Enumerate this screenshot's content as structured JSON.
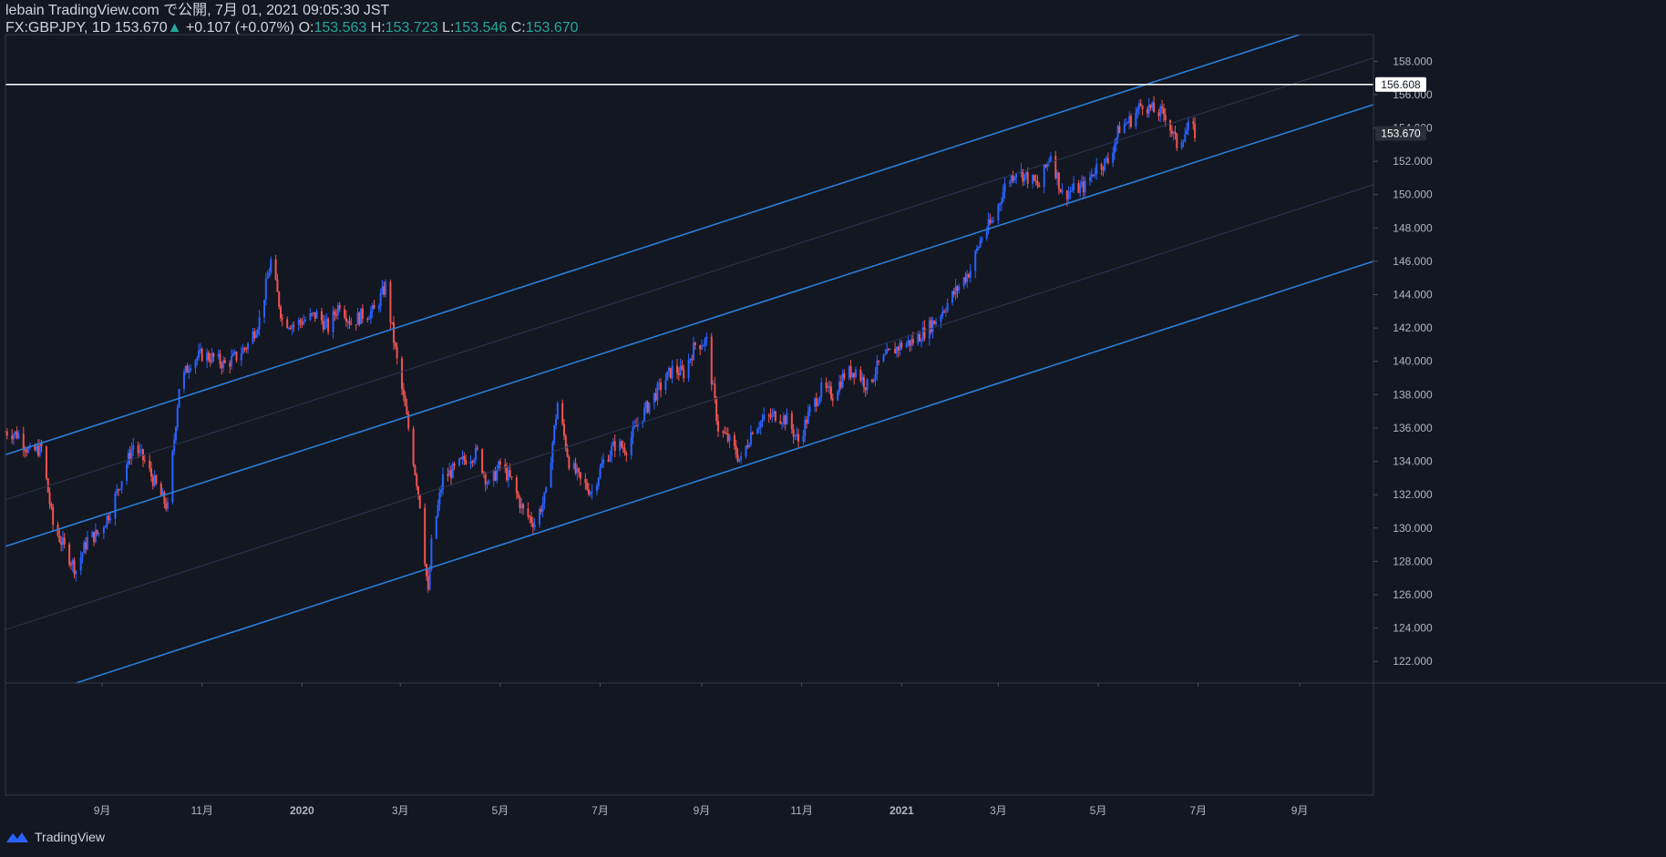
{
  "header": {
    "line1": "lebain TradingView.com で公開, 7月 01, 2021 09:05:30 JST",
    "symbol": "FX:GBPJPY, 1D",
    "last": "153.670",
    "change": "+0.107 (+0.07%)",
    "o_label": "O:",
    "o_value": "153.563",
    "h_label": "H:",
    "h_value": "153.723",
    "l_label": "L:",
    "l_value": "153.546",
    "c_label": "C:",
    "c_value": "153.670"
  },
  "footer": {
    "brand": "TradingView"
  },
  "colors": {
    "up": "#2962ff",
    "down": "#ef5350",
    "channel": "#2a7fd9",
    "background": "#131722",
    "text": "#d1d4dc",
    "accent": "#26a69a"
  },
  "chart_data": {
    "type": "candlestick",
    "symbol": "FX:GBPJPY",
    "interval": "1D",
    "x_ticks": [
      "9月",
      "11月",
      "2020",
      "3月",
      "5月",
      "7月",
      "9月",
      "11月",
      "2021",
      "3月",
      "5月",
      "7月",
      "9月"
    ],
    "x_tick_dates": [
      "2019-09-01",
      "2019-11-01",
      "2020-01-01",
      "2020-03-01",
      "2020-05-01",
      "2020-07-01",
      "2020-09-01",
      "2020-11-01",
      "2021-01-01",
      "2021-03-01",
      "2021-05-01",
      "2021-07-01",
      "2021-09-01"
    ],
    "y_ticks": [
      "122.000",
      "124.000",
      "126.000",
      "128.000",
      "130.000",
      "132.000",
      "134.000",
      "136.000",
      "138.000",
      "140.000",
      "142.000",
      "144.000",
      "146.000",
      "148.000",
      "150.000",
      "152.000",
      "154.000",
      "156.000",
      "158.000"
    ],
    "ylim": [
      120.7,
      159.6
    ],
    "xlim": [
      "2019-07-04",
      "2021-10-16"
    ],
    "horizontal_line": {
      "value": 156.608,
      "label": "156.608"
    },
    "last_price_label": "153.670",
    "channel_lines": [
      {
        "kind": "main",
        "from": {
          "date": "2019-07-04",
          "value": 134.4
        },
        "to": {
          "date": "2021-09-01",
          "value": 159.6
        }
      },
      {
        "kind": "main",
        "from": {
          "date": "2019-07-04",
          "value": 128.9
        },
        "to": {
          "date": "2021-10-16",
          "value": 155.4
        }
      },
      {
        "kind": "main",
        "from": {
          "date": "2019-08-16",
          "value": 120.7
        },
        "to": {
          "date": "2021-10-16",
          "value": 146.0
        }
      },
      {
        "kind": "mid",
        "from": {
          "date": "2019-07-04",
          "value": 131.7
        },
        "to": {
          "date": "2021-10-16",
          "value": 158.2
        }
      },
      {
        "kind": "mid",
        "from": {
          "date": "2019-07-04",
          "value": 123.9
        },
        "to": {
          "date": "2021-10-16",
          "value": 150.6
        }
      }
    ],
    "close_series": [
      {
        "date": "2019-07-04",
        "close": 135.8
      },
      {
        "date": "2019-07-12",
        "close": 135.6
      },
      {
        "date": "2019-07-19",
        "close": 134.5
      },
      {
        "date": "2019-07-26",
        "close": 134.8
      },
      {
        "date": "2019-08-02",
        "close": 130.2
      },
      {
        "date": "2019-08-09",
        "close": 128.8
      },
      {
        "date": "2019-08-16",
        "close": 127.5
      },
      {
        "date": "2019-08-23",
        "close": 129.3
      },
      {
        "date": "2019-08-30",
        "close": 129.7
      },
      {
        "date": "2019-09-06",
        "close": 131.0
      },
      {
        "date": "2019-09-13",
        "close": 133.0
      },
      {
        "date": "2019-09-20",
        "close": 135.0
      },
      {
        "date": "2019-09-27",
        "close": 134.0
      },
      {
        "date": "2019-10-04",
        "close": 132.5
      },
      {
        "date": "2019-10-11",
        "close": 131.2
      },
      {
        "date": "2019-10-18",
        "close": 138.5
      },
      {
        "date": "2019-10-25",
        "close": 140.0
      },
      {
        "date": "2019-11-01",
        "close": 140.4
      },
      {
        "date": "2019-11-08",
        "close": 140.2
      },
      {
        "date": "2019-11-15",
        "close": 139.8
      },
      {
        "date": "2019-11-22",
        "close": 140.3
      },
      {
        "date": "2019-11-29",
        "close": 141.0
      },
      {
        "date": "2019-12-06",
        "close": 142.5
      },
      {
        "date": "2019-12-13",
        "close": 146.0
      },
      {
        "date": "2019-12-20",
        "close": 142.5
      },
      {
        "date": "2019-12-27",
        "close": 142.2
      },
      {
        "date": "2020-01-03",
        "close": 142.5
      },
      {
        "date": "2020-01-10",
        "close": 142.8
      },
      {
        "date": "2020-01-17",
        "close": 142.0
      },
      {
        "date": "2020-01-24",
        "close": 143.5
      },
      {
        "date": "2020-01-31",
        "close": 142.3
      },
      {
        "date": "2020-02-07",
        "close": 142.8
      },
      {
        "date": "2020-02-14",
        "close": 143.0
      },
      {
        "date": "2020-02-21",
        "close": 144.5
      },
      {
        "date": "2020-02-28",
        "close": 140.0
      },
      {
        "date": "2020-03-06",
        "close": 136.0
      },
      {
        "date": "2020-03-13",
        "close": 131.5
      },
      {
        "date": "2020-03-18",
        "close": 126.0
      },
      {
        "date": "2020-03-20",
        "close": 129.0
      },
      {
        "date": "2020-03-27",
        "close": 133.0
      },
      {
        "date": "2020-04-03",
        "close": 133.5
      },
      {
        "date": "2020-04-10",
        "close": 134.2
      },
      {
        "date": "2020-04-17",
        "close": 134.5
      },
      {
        "date": "2020-04-24",
        "close": 132.5
      },
      {
        "date": "2020-05-01",
        "close": 133.8
      },
      {
        "date": "2020-05-08",
        "close": 132.8
      },
      {
        "date": "2020-05-15",
        "close": 131.0
      },
      {
        "date": "2020-05-22",
        "close": 130.3
      },
      {
        "date": "2020-05-29",
        "close": 132.0
      },
      {
        "date": "2020-06-05",
        "close": 137.5
      },
      {
        "date": "2020-06-12",
        "close": 134.0
      },
      {
        "date": "2020-06-19",
        "close": 132.8
      },
      {
        "date": "2020-06-26",
        "close": 132.2
      },
      {
        "date": "2020-07-03",
        "close": 134.0
      },
      {
        "date": "2020-07-10",
        "close": 135.0
      },
      {
        "date": "2020-07-17",
        "close": 134.8
      },
      {
        "date": "2020-07-24",
        "close": 136.3
      },
      {
        "date": "2020-07-31",
        "close": 137.5
      },
      {
        "date": "2020-08-07",
        "close": 138.5
      },
      {
        "date": "2020-08-14",
        "close": 139.5
      },
      {
        "date": "2020-08-21",
        "close": 139.3
      },
      {
        "date": "2020-08-28",
        "close": 141.0
      },
      {
        "date": "2020-09-04",
        "close": 141.2
      },
      {
        "date": "2020-09-11",
        "close": 136.0
      },
      {
        "date": "2020-09-18",
        "close": 135.2
      },
      {
        "date": "2020-09-25",
        "close": 134.0
      },
      {
        "date": "2020-10-02",
        "close": 136.0
      },
      {
        "date": "2020-10-09",
        "close": 136.5
      },
      {
        "date": "2020-10-16",
        "close": 136.8
      },
      {
        "date": "2020-10-23",
        "close": 136.5
      },
      {
        "date": "2020-10-30",
        "close": 135.2
      },
      {
        "date": "2020-11-06",
        "close": 137.0
      },
      {
        "date": "2020-11-13",
        "close": 138.3
      },
      {
        "date": "2020-11-20",
        "close": 138.0
      },
      {
        "date": "2020-11-27",
        "close": 139.2
      },
      {
        "date": "2020-12-04",
        "close": 139.5
      },
      {
        "date": "2020-12-11",
        "close": 138.5
      },
      {
        "date": "2020-12-18",
        "close": 139.8
      },
      {
        "date": "2020-12-25",
        "close": 140.5
      },
      {
        "date": "2021-01-01",
        "close": 141.0
      },
      {
        "date": "2021-01-08",
        "close": 141.2
      },
      {
        "date": "2021-01-15",
        "close": 141.8
      },
      {
        "date": "2021-01-22",
        "close": 142.5
      },
      {
        "date": "2021-01-29",
        "close": 143.5
      },
      {
        "date": "2021-02-05",
        "close": 144.5
      },
      {
        "date": "2021-02-12",
        "close": 145.5
      },
      {
        "date": "2021-02-19",
        "close": 147.5
      },
      {
        "date": "2021-02-26",
        "close": 148.5
      },
      {
        "date": "2021-03-05",
        "close": 150.5
      },
      {
        "date": "2021-03-12",
        "close": 151.5
      },
      {
        "date": "2021-03-19",
        "close": 151.0
      },
      {
        "date": "2021-03-26",
        "close": 150.5
      },
      {
        "date": "2021-04-02",
        "close": 152.5
      },
      {
        "date": "2021-04-09",
        "close": 150.0
      },
      {
        "date": "2021-04-16",
        "close": 150.3
      },
      {
        "date": "2021-04-23",
        "close": 150.5
      },
      {
        "date": "2021-04-30",
        "close": 151.7
      },
      {
        "date": "2021-05-07",
        "close": 152.0
      },
      {
        "date": "2021-05-14",
        "close": 154.0
      },
      {
        "date": "2021-05-21",
        "close": 154.5
      },
      {
        "date": "2021-05-28",
        "close": 155.5
      },
      {
        "date": "2021-06-04",
        "close": 155.0
      },
      {
        "date": "2021-06-11",
        "close": 154.8
      },
      {
        "date": "2021-06-18",
        "close": 153.0
      },
      {
        "date": "2021-06-25",
        "close": 154.0
      },
      {
        "date": "2021-06-30",
        "close": 153.67
      }
    ]
  }
}
